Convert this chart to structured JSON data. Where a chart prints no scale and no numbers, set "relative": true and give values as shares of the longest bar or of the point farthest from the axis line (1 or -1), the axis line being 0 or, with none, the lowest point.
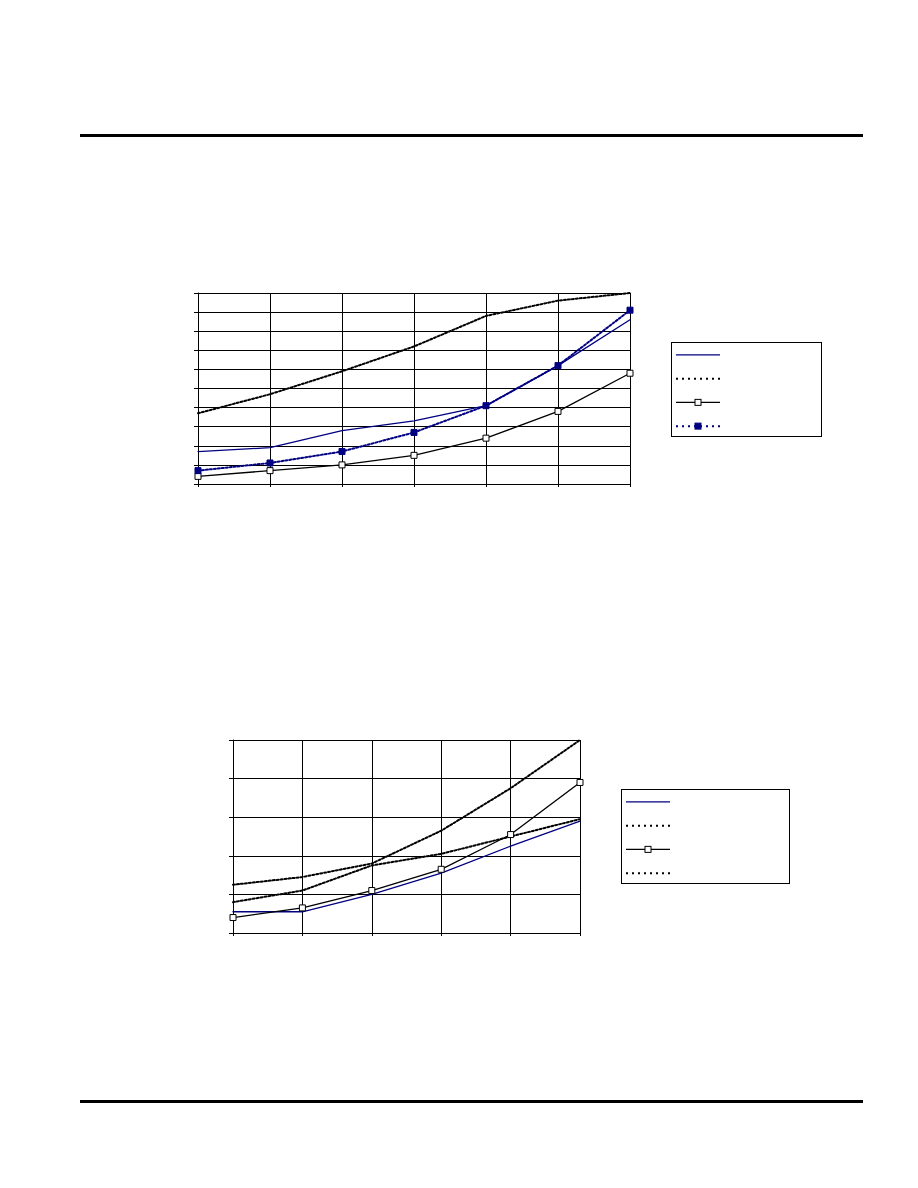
{
  "chart_data": [
    {
      "type": "line",
      "relative": true,
      "grid": true,
      "categories": [
        null,
        null,
        null,
        null,
        null,
        null,
        null
      ],
      "series": [
        {
          "color": "#000080",
          "line_style": "solid",
          "marker": "none",
          "values": [
            0.17,
            0.19,
            0.28,
            0.33,
            0.41,
            0.62,
            0.86
          ]
        },
        {
          "color": "#000000",
          "line_style": "dotted",
          "marker": "none",
          "values": [
            0.37,
            0.47,
            0.59,
            0.72,
            0.88,
            0.96,
            1
          ]
        },
        {
          "color": "#000000",
          "line_style": "solid",
          "marker": "square",
          "values": [
            0.04,
            0.07,
            0.1,
            0.15,
            0.24,
            0.38,
            0.58
          ]
        },
        {
          "color": "#000080",
          "line_style": "dotted",
          "marker": "square",
          "values": [
            0.07,
            0.11,
            0.17,
            0.27,
            0.41,
            0.62,
            0.91
          ]
        }
      ]
    },
    {
      "type": "line",
      "relative": true,
      "grid": true,
      "categories": [
        null,
        null,
        null,
        null,
        null,
        null
      ],
      "series": [
        {
          "color": "#000080",
          "line_style": "solid",
          "marker": "none",
          "values": [
            0.11,
            0.11,
            0.2,
            0.31,
            0.45,
            0.58
          ]
        },
        {
          "color": "#000000",
          "line_style": "dotted",
          "marker": "none",
          "values": [
            0.25,
            0.29,
            0.36,
            0.53,
            0.75,
            1
          ]
        },
        {
          "color": "#000000",
          "line_style": "solid",
          "marker": "square",
          "values": [
            0.08,
            0.13,
            0.22,
            0.33,
            0.51,
            0.78
          ]
        },
        {
          "color": "#000000",
          "line_style": "dotted",
          "marker": "none",
          "values": [
            0.16,
            0.22,
            0.35,
            0.41,
            0.5,
            0.59
          ]
        }
      ]
    }
  ]
}
